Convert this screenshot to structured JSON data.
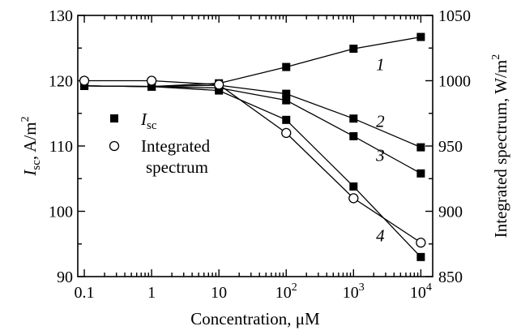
{
  "chart_data": {
    "type": "line",
    "x_scale": "log",
    "x": [
      0.1,
      1,
      10,
      100,
      1000,
      10000
    ],
    "xlabel": "Concentration, μM",
    "xlim": [
      0.08,
      15000
    ],
    "x_ticks": [
      {
        "value": 0.1,
        "label": "0.1"
      },
      {
        "value": 1,
        "label": "1"
      },
      {
        "value": 10,
        "label": "10"
      },
      {
        "value": 100,
        "base": "10",
        "exp": "2"
      },
      {
        "value": 1000,
        "base": "10",
        "exp": "3"
      },
      {
        "value": 10000,
        "base": "10",
        "exp": "4"
      }
    ],
    "y_left": {
      "label_main": "I",
      "label_sub": "sc",
      "label_rest": ", A/m",
      "label_sup": "2",
      "lim": [
        90,
        130
      ],
      "ticks": [
        90,
        100,
        110,
        120,
        130
      ]
    },
    "y_right": {
      "label_main": "Integrated spectrum, W/m",
      "label_sup": "2",
      "lim": [
        850,
        1050
      ],
      "ticks": [
        850,
        900,
        950,
        1000,
        1050
      ]
    },
    "legend": {
      "position": "center-left",
      "entries": [
        {
          "marker": "filled-square",
          "label_main": "I",
          "label_sub": "sc"
        },
        {
          "marker": "open-circle",
          "label_line1": "Integrated",
          "label_line2": "spectrum"
        }
      ]
    },
    "series": [
      {
        "label": "1",
        "axis": "left",
        "marker": "filled-square",
        "values": [
          119.2,
          119.1,
          119.6,
          122.1,
          124.9,
          126.7
        ]
      },
      {
        "label": "2",
        "axis": "left",
        "marker": "filled-square",
        "values": [
          119.2,
          119.1,
          119.3,
          118.0,
          114.2,
          109.8
        ]
      },
      {
        "label": "3",
        "axis": "left",
        "marker": "filled-square",
        "values": [
          119.2,
          119.1,
          118.9,
          117.0,
          111.5,
          105.8
        ]
      },
      {
        "label": "4",
        "axis": "left",
        "marker": "filled-square",
        "values": [
          119.2,
          119.1,
          118.5,
          114.0,
          103.8,
          93.0
        ]
      },
      {
        "label": "",
        "axis": "right",
        "marker": "open-circle",
        "values": [
          1000,
          1000,
          997,
          960,
          910,
          876
        ]
      }
    ],
    "curve_label_points": [
      {
        "label": "1",
        "x": 2500,
        "y": 122.5
      },
      {
        "label": "2",
        "x": 2500,
        "y": 113.8
      },
      {
        "label": "3",
        "x": 2500,
        "y": 108.6
      },
      {
        "label": "4",
        "x": 2500,
        "y": 96.3
      }
    ]
  }
}
